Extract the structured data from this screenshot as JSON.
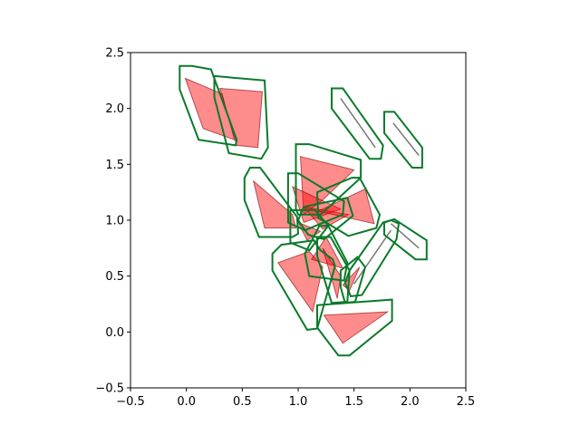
{
  "chart_data": {
    "type": "polygon",
    "title": "",
    "xlabel": "",
    "ylabel": "",
    "xlim": [
      -0.5,
      2.5
    ],
    "ylim": [
      -0.5,
      2.5
    ],
    "xticks": [
      -0.5,
      0.0,
      0.5,
      1.0,
      1.5,
      2.0,
      2.5
    ],
    "yticks": [
      -0.5,
      0.0,
      0.5,
      1.0,
      1.5,
      2.0,
      2.5
    ],
    "xtick_labels": [
      "−0.5",
      "0.0",
      "0.5",
      "1.0",
      "1.5",
      "2.0",
      "2.5"
    ],
    "ytick_labels": [
      "−0.5",
      "0.0",
      "0.5",
      "1.0",
      "1.5",
      "2.0",
      "2.5"
    ],
    "grid": false,
    "aspect": "equal",
    "colors": {
      "fill": "#ff0000",
      "fill_opacity": 0.45,
      "shape_edge": "#800000",
      "outline": "#0a7a2a",
      "degenerate_line": "#777777"
    },
    "shapes": [
      {
        "kind": "polygon",
        "points": [
          [
            -0.01,
            2.27
          ],
          [
            0.15,
            1.82
          ],
          [
            0.43,
            1.72
          ],
          [
            0.32,
            2.13
          ]
        ]
      },
      {
        "kind": "polygon",
        "points": [
          [
            0.3,
            2.18
          ],
          [
            0.68,
            2.15
          ],
          [
            0.64,
            1.65
          ],
          [
            0.45,
            1.67
          ]
        ]
      },
      {
        "kind": "polygon",
        "points": [
          [
            1.02,
            1.57
          ],
          [
            1.5,
            1.45
          ],
          [
            1.22,
            1.18
          ],
          [
            1.05,
            1.05
          ]
        ]
      },
      {
        "kind": "polygon",
        "points": [
          [
            0.6,
            1.35
          ],
          [
            0.7,
            0.93
          ],
          [
            0.98,
            0.93
          ],
          [
            0.95,
            1.05
          ]
        ]
      },
      {
        "kind": "polygon",
        "points": [
          [
            0.95,
            1.3
          ],
          [
            1.38,
            1.1
          ],
          [
            1.05,
            0.98
          ]
        ]
      },
      {
        "kind": "polygon",
        "points": [
          [
            1.05,
            1.12
          ],
          [
            1.45,
            1.05
          ],
          [
            1.22,
            0.92
          ]
        ]
      },
      {
        "kind": "polygon",
        "points": [
          [
            1.18,
            1.08
          ],
          [
            1.6,
            1.28
          ],
          [
            1.68,
            0.97
          ]
        ]
      },
      {
        "kind": "polygon",
        "points": [
          [
            1.0,
            0.98
          ],
          [
            1.2,
            0.9
          ],
          [
            1.08,
            0.82
          ]
        ]
      },
      {
        "kind": "polygon",
        "points": [
          [
            0.82,
            0.62
          ],
          [
            1.13,
            0.18
          ],
          [
            1.22,
            0.58
          ],
          [
            1.1,
            0.72
          ]
        ]
      },
      {
        "kind": "polygon",
        "points": [
          [
            1.12,
            0.65
          ],
          [
            1.4,
            0.57
          ],
          [
            1.25,
            0.85
          ]
        ]
      },
      {
        "kind": "polygon",
        "points": [
          [
            1.22,
            0.75
          ],
          [
            1.38,
            0.5
          ],
          [
            1.35,
            0.3
          ]
        ]
      },
      {
        "kind": "polygon",
        "points": [
          [
            1.4,
            0.42
          ],
          [
            1.55,
            0.58
          ],
          [
            1.46,
            0.37
          ]
        ]
      },
      {
        "kind": "polygon",
        "points": [
          [
            1.23,
            0.15
          ],
          [
            1.8,
            0.18
          ],
          [
            1.4,
            -0.1
          ]
        ]
      },
      {
        "kind": "line",
        "points": [
          [
            1.38,
            2.09
          ],
          [
            1.69,
            1.65
          ]
        ]
      },
      {
        "kind": "line",
        "points": [
          [
            1.85,
            1.87
          ],
          [
            2.08,
            1.58
          ]
        ]
      },
      {
        "kind": "line",
        "points": [
          [
            1.83,
            0.97
          ],
          [
            2.08,
            0.75
          ]
        ]
      },
      {
        "kind": "line",
        "points": [
          [
            1.83,
            0.91
          ],
          [
            1.5,
            0.43
          ]
        ]
      }
    ],
    "outlines": [
      {
        "points": [
          [
            -0.06,
            2.38
          ],
          [
            0.05,
            2.38
          ],
          [
            0.22,
            2.35
          ],
          [
            0.45,
            1.72
          ],
          [
            0.44,
            1.67
          ],
          [
            0.11,
            1.72
          ],
          [
            -0.06,
            2.17
          ]
        ]
      },
      {
        "points": [
          [
            0.25,
            2.29
          ],
          [
            0.7,
            2.25
          ],
          [
            0.73,
            1.65
          ],
          [
            0.67,
            1.55
          ],
          [
            0.38,
            1.6
          ],
          [
            0.25,
            2.1
          ]
        ]
      },
      {
        "points": [
          [
            0.98,
            1.68
          ],
          [
            1.1,
            1.68
          ],
          [
            1.56,
            1.54
          ],
          [
            1.56,
            1.38
          ],
          [
            1.2,
            1.05
          ],
          [
            1.0,
            1.05
          ],
          [
            0.98,
            1.1
          ]
        ]
      },
      {
        "points": [
          [
            0.57,
            1.47
          ],
          [
            0.66,
            1.47
          ],
          [
            0.99,
            1.03
          ],
          [
            1.0,
            0.88
          ],
          [
            0.95,
            0.85
          ],
          [
            0.65,
            0.85
          ],
          [
            0.52,
            1.18
          ],
          [
            0.52,
            1.38
          ]
        ]
      },
      {
        "points": [
          [
            0.91,
            1.42
          ],
          [
            1.0,
            1.42
          ],
          [
            1.41,
            1.17
          ],
          [
            1.4,
            1.05
          ],
          [
            1.06,
            0.91
          ],
          [
            0.91,
            0.98
          ]
        ]
      },
      {
        "points": [
          [
            1.05,
            1.12
          ],
          [
            1.44,
            1.2
          ],
          [
            1.49,
            1.04
          ],
          [
            1.23,
            0.83
          ],
          [
            1.09,
            0.87
          ],
          [
            1.0,
            1.0
          ]
        ]
      },
      {
        "points": [
          [
            1.17,
            1.25
          ],
          [
            1.48,
            1.38
          ],
          [
            1.55,
            1.38
          ],
          [
            1.73,
            1.05
          ],
          [
            1.7,
            0.93
          ],
          [
            1.45,
            0.86
          ],
          [
            1.18,
            1.02
          ]
        ]
      },
      {
        "points": [
          [
            0.93,
            1.09
          ],
          [
            1.15,
            1.09
          ],
          [
            1.27,
            0.95
          ],
          [
            1.1,
            0.73
          ],
          [
            0.93,
            0.8
          ]
        ]
      },
      {
        "points": [
          [
            0.77,
            0.7
          ],
          [
            0.85,
            0.78
          ],
          [
            1.14,
            0.82
          ],
          [
            1.2,
            0.73
          ],
          [
            1.31,
            0.65
          ],
          [
            1.33,
            0.59
          ],
          [
            1.17,
            0.03
          ],
          [
            1.08,
            0.02
          ],
          [
            0.77,
            0.55
          ]
        ]
      },
      {
        "points": [
          [
            1.06,
            0.7
          ],
          [
            1.19,
            0.95
          ],
          [
            1.27,
            0.95
          ],
          [
            1.44,
            0.62
          ],
          [
            1.41,
            0.46
          ],
          [
            1.1,
            0.5
          ]
        ]
      },
      {
        "points": [
          [
            1.17,
            0.85
          ],
          [
            1.29,
            0.85
          ],
          [
            1.46,
            0.55
          ],
          [
            1.44,
            0.27
          ],
          [
            1.3,
            0.26
          ],
          [
            1.17,
            0.68
          ]
        ]
      },
      {
        "points": [
          [
            1.38,
            0.55
          ],
          [
            1.53,
            0.67
          ],
          [
            1.6,
            0.58
          ],
          [
            1.51,
            0.27
          ],
          [
            1.42,
            0.26
          ],
          [
            1.38,
            0.4
          ]
        ]
      },
      {
        "points": [
          [
            1.17,
            0.24
          ],
          [
            1.84,
            0.29
          ],
          [
            1.84,
            0.1
          ],
          [
            1.46,
            -0.21
          ],
          [
            1.36,
            -0.21
          ],
          [
            1.17,
            0.04
          ]
        ]
      },
      {
        "points": [
          [
            1.3,
            2.18
          ],
          [
            1.4,
            2.18
          ],
          [
            1.76,
            1.67
          ],
          [
            1.74,
            1.55
          ],
          [
            1.64,
            1.55
          ],
          [
            1.3,
            2.0
          ]
        ]
      },
      {
        "points": [
          [
            1.77,
            1.97
          ],
          [
            1.86,
            1.97
          ],
          [
            2.11,
            1.65
          ],
          [
            2.11,
            1.47
          ],
          [
            2.02,
            1.47
          ],
          [
            1.77,
            1.78
          ]
        ]
      },
      {
        "points": [
          [
            1.77,
            0.98
          ],
          [
            1.86,
            1.01
          ],
          [
            2.15,
            0.82
          ],
          [
            2.15,
            0.65
          ],
          [
            2.05,
            0.65
          ],
          [
            1.77,
            0.87
          ]
        ]
      },
      {
        "points": [
          [
            1.83,
            1.0
          ],
          [
            1.9,
            0.97
          ],
          [
            1.88,
            0.83
          ],
          [
            1.57,
            0.33
          ],
          [
            1.47,
            0.32
          ],
          [
            1.42,
            0.44
          ],
          [
            1.46,
            0.55
          ],
          [
            1.76,
            0.98
          ]
        ]
      }
    ]
  }
}
